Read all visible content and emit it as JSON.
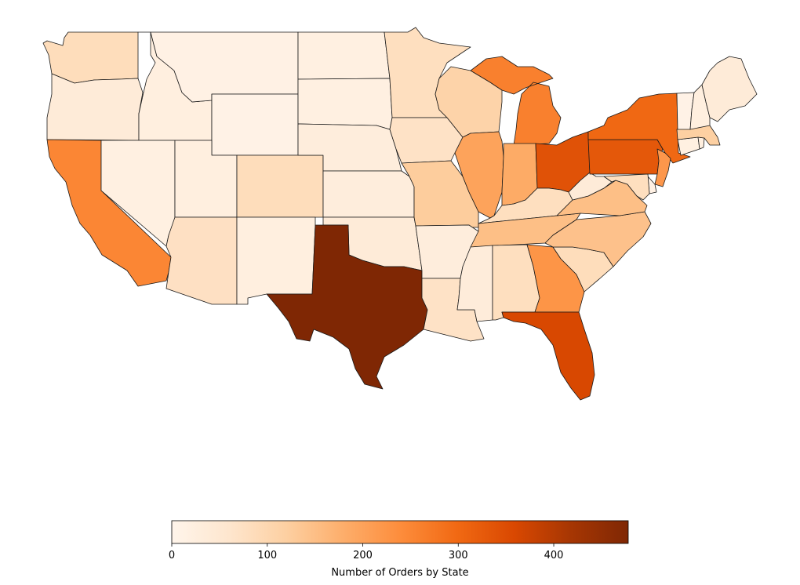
{
  "chart_data": {
    "type": "choropleth",
    "colorscale": "Oranges",
    "colorbar": {
      "label": "Number of Orders by State",
      "range": [
        0,
        478
      ],
      "ticks": [
        0,
        100,
        200,
        300,
        400
      ]
    },
    "states": [
      {
        "code": "WA",
        "orders": 85
      },
      {
        "code": "OR",
        "orders": 40
      },
      {
        "code": "CA",
        "orders": 250
      },
      {
        "code": "ID",
        "orders": 25
      },
      {
        "code": "NV",
        "orders": 20
      },
      {
        "code": "MT",
        "orders": 15
      },
      {
        "code": "WY",
        "orders": 10
      },
      {
        "code": "UT",
        "orders": 25
      },
      {
        "code": "AZ",
        "orders": 75
      },
      {
        "code": "CO",
        "orders": 85
      },
      {
        "code": "NM",
        "orders": 25
      },
      {
        "code": "ND",
        "orders": 20
      },
      {
        "code": "SD",
        "orders": 20
      },
      {
        "code": "NE",
        "orders": 30
      },
      {
        "code": "KS",
        "orders": 30
      },
      {
        "code": "OK",
        "orders": 40
      },
      {
        "code": "TX",
        "orders": 478
      },
      {
        "code": "MN",
        "orders": 80
      },
      {
        "code": "IA",
        "orders": 70
      },
      {
        "code": "MO",
        "orders": 125
      },
      {
        "code": "AR",
        "orders": 30
      },
      {
        "code": "LA",
        "orders": 70
      },
      {
        "code": "WI",
        "orders": 110
      },
      {
        "code": "IL",
        "orders": 200
      },
      {
        "code": "MI",
        "orders": 260
      },
      {
        "code": "IN",
        "orders": 185
      },
      {
        "code": "OH",
        "orders": 340
      },
      {
        "code": "KY",
        "orders": 80
      },
      {
        "code": "TN",
        "orders": 150
      },
      {
        "code": "MS",
        "orders": 35
      },
      {
        "code": "AL",
        "orders": 80
      },
      {
        "code": "GA",
        "orders": 225
      },
      {
        "code": "FL",
        "orders": 360
      },
      {
        "code": "SC",
        "orders": 85
      },
      {
        "code": "NC",
        "orders": 145
      },
      {
        "code": "VA",
        "orders": 150
      },
      {
        "code": "WV",
        "orders": 40
      },
      {
        "code": "PA",
        "orders": 330
      },
      {
        "code": "NY",
        "orders": 300
      },
      {
        "code": "NJ",
        "orders": 220
      },
      {
        "code": "DE",
        "orders": 15
      },
      {
        "code": "MD",
        "orders": 80
      },
      {
        "code": "CT",
        "orders": 20
      },
      {
        "code": "RI",
        "orders": 25
      },
      {
        "code": "MA",
        "orders": 120
      },
      {
        "code": "VT",
        "orders": 10
      },
      {
        "code": "NH",
        "orders": 25
      },
      {
        "code": "ME",
        "orders": 40
      }
    ]
  }
}
